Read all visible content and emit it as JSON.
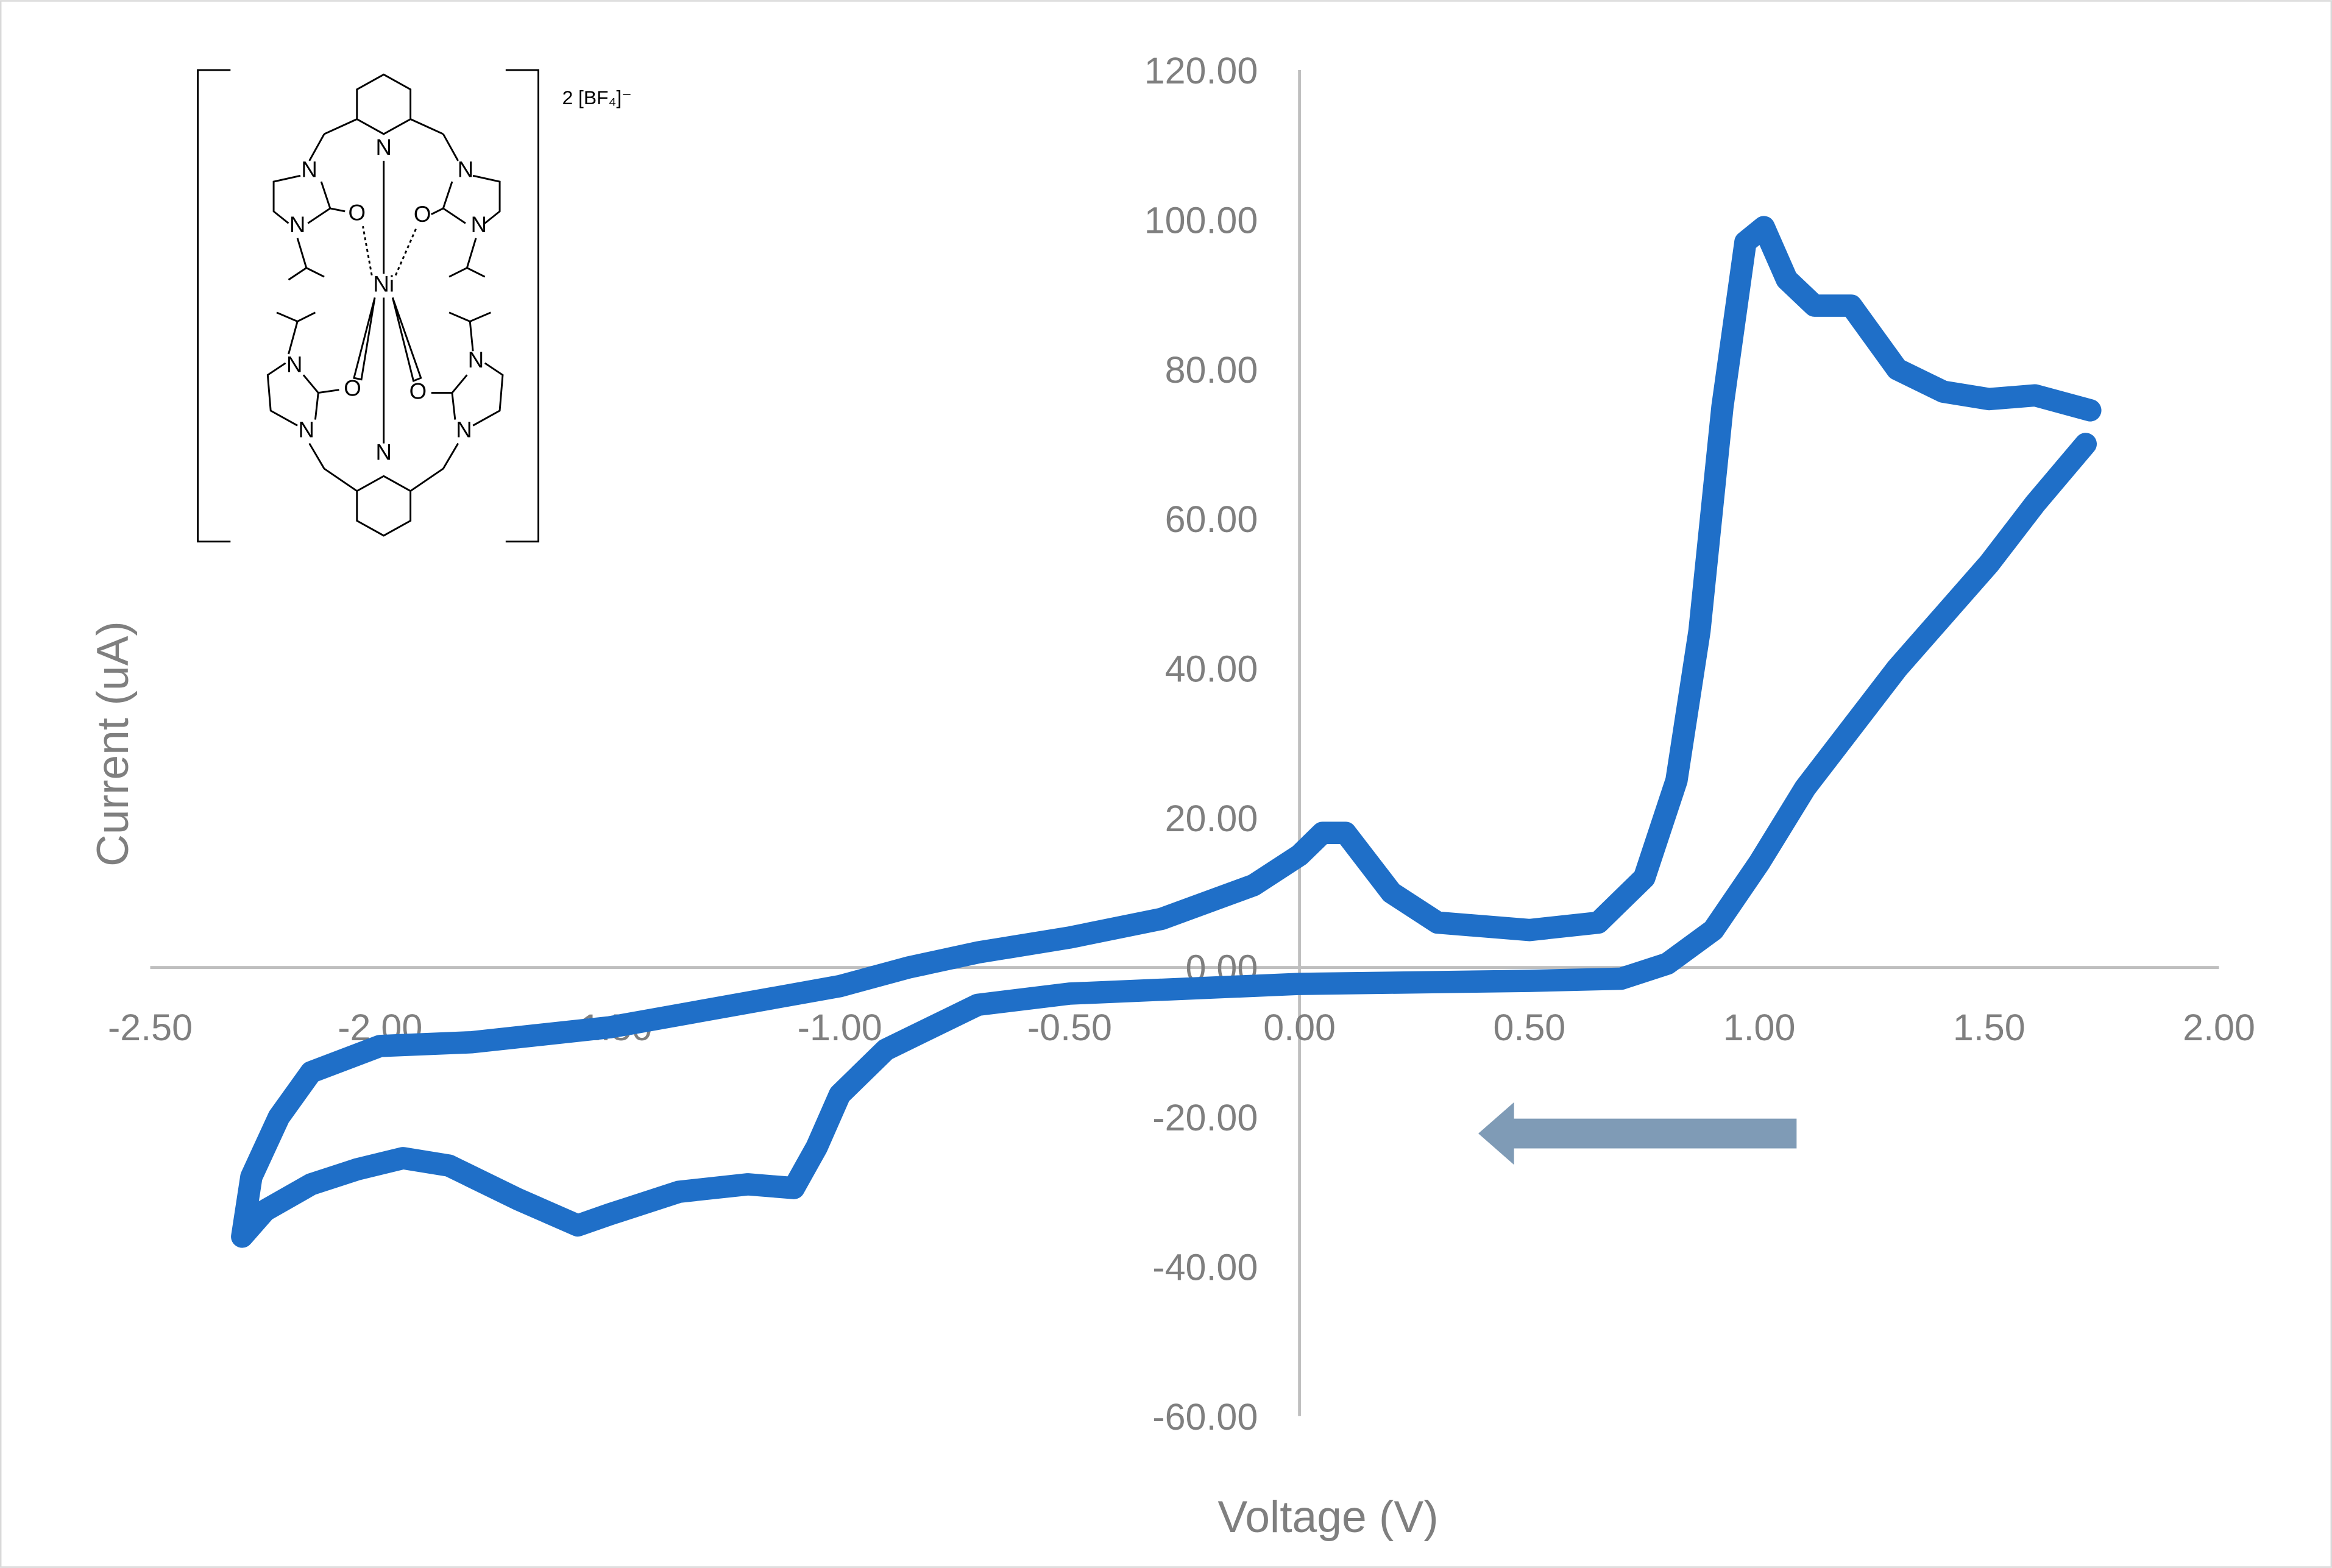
{
  "chart_data": {
    "type": "line",
    "xlabel": "Voltage (V)",
    "ylabel": "Current (uA)",
    "xlim": [
      -2.5,
      2.0
    ],
    "ylim": [
      -60,
      120
    ],
    "xticks": [
      {
        "value": -2.5,
        "label": "-2.50"
      },
      {
        "value": -2.0,
        "label": "-2.00"
      },
      {
        "value": -1.5,
        "label": "-1.50"
      },
      {
        "value": -1.0,
        "label": "-1.00"
      },
      {
        "value": -0.5,
        "label": "-0.50"
      },
      {
        "value": 0,
        "label": "0.00"
      },
      {
        "value": 0.5,
        "label": "0.50"
      },
      {
        "value": 1.0,
        "label": "1.00"
      },
      {
        "value": 1.5,
        "label": "1.50"
      },
      {
        "value": 2.0,
        "label": "2.00"
      }
    ],
    "yticks": [
      {
        "value": -60,
        "label": "-60.00"
      },
      {
        "value": -40,
        "label": "-40.00"
      },
      {
        "value": -20,
        "label": "-20.00"
      },
      {
        "value": 0,
        "label": "0.00"
      },
      {
        "value": 20,
        "label": "20.00"
      },
      {
        "value": 40,
        "label": "40.00"
      },
      {
        "value": 60,
        "label": "60.00"
      },
      {
        "value": 80,
        "label": "80.00"
      },
      {
        "value": 100,
        "label": "100.00"
      },
      {
        "value": 120,
        "label": "120.00"
      }
    ],
    "grid": false,
    "series": [
      {
        "color": "#1f6fc8",
        "x": [
          1.71,
          1.6,
          1.5,
          1.4,
          1.3,
          1.2,
          1.1,
          1.0,
          0.9,
          0.8,
          0.7,
          0.5,
          0.0,
          -0.5,
          -0.7,
          -0.9,
          -1.0,
          -1.05,
          -1.1,
          -1.2,
          -1.35,
          -1.5,
          -1.57,
          -1.7,
          -1.85,
          -1.95,
          -2.05,
          -2.15,
          -2.25,
          -2.3,
          -2.28,
          -2.22,
          -2.15,
          -2.0,
          -1.8,
          -1.5,
          -1.0,
          -0.85,
          -0.7,
          -0.5,
          -0.3,
          -0.1,
          0.0,
          0.05,
          0.1,
          0.2,
          0.3,
          0.5,
          0.65,
          0.75,
          0.82,
          0.87,
          0.92,
          0.97,
          1.01,
          1.06,
          1.12,
          1.2,
          1.3,
          1.4,
          1.5,
          1.6,
          1.72
        ],
        "values": [
          70,
          62,
          54,
          47,
          40,
          32,
          24,
          14,
          5,
          0.5,
          -1.5,
          -1.8,
          -2.2,
          -3.5,
          -5,
          -11,
          -17,
          -24,
          -29.5,
          -29,
          -30,
          -33,
          -34.5,
          -31,
          -26.5,
          -25.5,
          -27,
          -29,
          -32.5,
          -36,
          -28,
          -20,
          -14,
          -10.5,
          -10,
          -8,
          -2.5,
          0,
          2,
          4,
          6.5,
          11,
          15,
          18,
          18,
          10,
          6,
          5,
          6,
          12,
          25,
          45,
          75,
          97,
          99,
          92,
          88.5,
          88.5,
          80,
          77,
          76,
          76.5,
          74.5
        ]
      }
    ],
    "inset": {
      "counterion": "2 [BF₄]⁻",
      "atoms": [
        "N",
        "Ni",
        "O",
        "O",
        "O",
        "O",
        "N",
        "N",
        "N",
        "N",
        "N",
        "N",
        "N",
        "N",
        "N"
      ]
    }
  }
}
